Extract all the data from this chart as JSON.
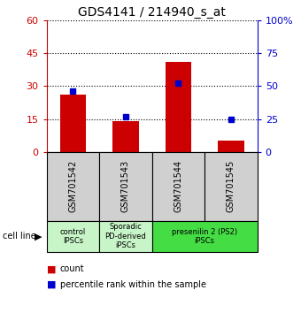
{
  "title": "GDS4141 / 214940_s_at",
  "categories": [
    "GSM701542",
    "GSM701543",
    "GSM701544",
    "GSM701545"
  ],
  "count_values": [
    26,
    14,
    41,
    5
  ],
  "percentile_values": [
    46,
    27,
    52,
    25
  ],
  "left_ylim": [
    0,
    60
  ],
  "right_ylim": [
    0,
    100
  ],
  "left_yticks": [
    0,
    15,
    30,
    45,
    60
  ],
  "right_yticks": [
    0,
    25,
    50,
    75,
    100
  ],
  "right_yticklabels": [
    "0",
    "25",
    "50",
    "75",
    "100%"
  ],
  "bar_color": "#cc0000",
  "dot_color": "#0000cc",
  "group_defs": [
    [
      0,
      1,
      "control\nIPSCs",
      "#c8f5c8"
    ],
    [
      1,
      2,
      "Sporadic\nPD-derived\niPSCs",
      "#c8f5c8"
    ],
    [
      2,
      4,
      "presenilin 2 (PS2)\niPSCs",
      "#44dd44"
    ]
  ],
  "gsm_box_color": "#d0d0d0",
  "cell_line_label": "cell line",
  "legend_count": "count",
  "legend_percentile": "percentile rank within the sample",
  "bar_width": 0.5,
  "title_fontsize": 10,
  "tick_fontsize": 8,
  "gsm_fontsize": 7,
  "group_fontsize": 6,
  "legend_fontsize": 7
}
